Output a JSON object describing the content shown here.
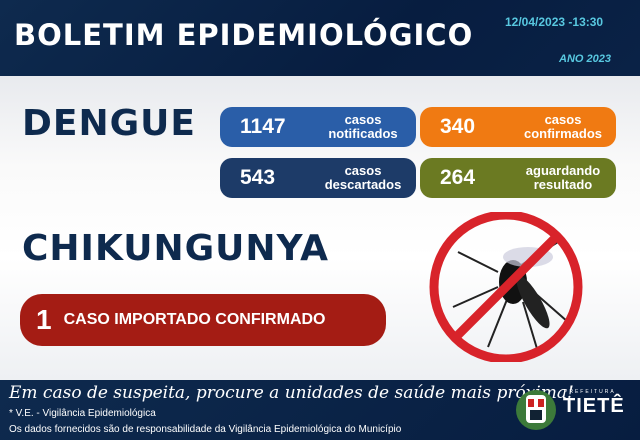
{
  "header": {
    "title": "BOLETIM EPIDEMIOLÓGICO",
    "datetime": "12/04/2023  -13:30",
    "year": "ANO 2023"
  },
  "dengue": {
    "title": "DENGUE",
    "cards": [
      {
        "value": "1147",
        "label": "casos notificados",
        "color": "#2a5ea8"
      },
      {
        "value": "340",
        "label": "casos confirmados",
        "color": "#f07a12"
      },
      {
        "value": "543",
        "label": "casos descartados",
        "color": "#1d3b68"
      },
      {
        "value": "264",
        "label": "aguardando resultado",
        "color": "#6b7a22"
      }
    ]
  },
  "chikungunya": {
    "title": "CHIKUNGUNYA",
    "value": "1",
    "label": "CASO IMPORTADO CONFIRMADO"
  },
  "footer": {
    "slogan": "Em caso de suspeita, procure a unidades de saúde mais próxima!",
    "note1": "* V.E. - Vigilância Epidemiológica",
    "note2": "Os dados fornecidos são de responsabilidade da Vigilância Epidemiológica do Município",
    "logo_prefix": "PREFEITURA",
    "logo_name": "TIETÊ"
  },
  "icons": {
    "mosquito": "no-mosquito-icon",
    "crest": "city-crest-icon"
  }
}
